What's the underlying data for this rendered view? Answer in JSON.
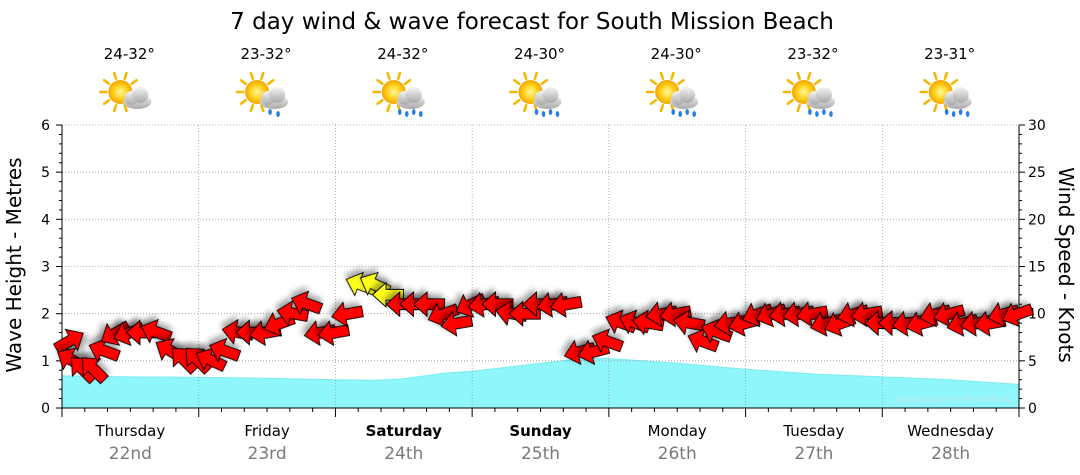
{
  "chart_data": {
    "type": "area",
    "title": "7 day wind & wave forecast for South Mission Beach",
    "ylabel_left": "Wave Height - Metres",
    "ylabel_right": "Wind Speed - Knots",
    "ylim_left": [
      0,
      6
    ],
    "ylim_right": [
      0,
      30
    ],
    "yticks_left": [
      "0",
      "1",
      "2",
      "3",
      "4",
      "5",
      "6"
    ],
    "yticks_right": [
      "0",
      "5",
      "10",
      "15",
      "20",
      "25",
      "30"
    ],
    "grid": true,
    "watermark": "www.seabreeze.com.au",
    "days": [
      {
        "name": "Thursday",
        "date": "22nd",
        "temp": "24-32°",
        "weather": "partly-cloudy",
        "weekend": false
      },
      {
        "name": "Friday",
        "date": "23rd",
        "temp": "23-32°",
        "weather": "showers",
        "weekend": false
      },
      {
        "name": "Saturday",
        "date": "24th",
        "temp": "24-32°",
        "weather": "rain",
        "weekend": true
      },
      {
        "name": "Sunday",
        "date": "25th",
        "temp": "24-30°",
        "weather": "rain",
        "weekend": true
      },
      {
        "name": "Monday",
        "date": "26th",
        "temp": "24-30°",
        "weather": "rain",
        "weekend": false
      },
      {
        "name": "Tuesday",
        "date": "27th",
        "temp": "23-32°",
        "weather": "rain",
        "weekend": false
      },
      {
        "name": "Wednesday",
        "date": "28th",
        "temp": "23-31°",
        "weather": "rain",
        "weekend": false
      }
    ],
    "wave_series": {
      "name": "Wave Height",
      "unit": "m",
      "x_days": [
        0,
        0.5,
        1,
        1.5,
        2,
        2.3,
        2.5,
        2.8,
        3,
        3.3,
        3.6,
        3.8,
        4,
        4.5,
        5,
        5.5,
        6,
        6.5,
        7
      ],
      "values": [
        0.68,
        0.66,
        0.65,
        0.63,
        0.6,
        0.59,
        0.62,
        0.74,
        0.78,
        0.88,
        0.98,
        1.05,
        1.05,
        0.95,
        0.82,
        0.72,
        0.66,
        0.6,
        0.5
      ]
    },
    "wind_series": {
      "name": "Wind Speed",
      "unit": "knots",
      "x_days": [
        0.0,
        0.08,
        0.16,
        0.24,
        0.32,
        0.4,
        0.5,
        0.6,
        0.7,
        0.8,
        0.9,
        1.0,
        1.1,
        1.2,
        1.3,
        1.4,
        1.5,
        1.6,
        1.7,
        1.8,
        1.9,
        2.0,
        2.1,
        2.2,
        2.3,
        2.4,
        2.5,
        2.6,
        2.7,
        2.8,
        2.9,
        3.0,
        3.1,
        3.2,
        3.3,
        3.4,
        3.5,
        3.6,
        3.7,
        3.8,
        3.9,
        4.0,
        4.1,
        4.2,
        4.3,
        4.4,
        4.5,
        4.6,
        4.7,
        4.8,
        4.9,
        5.0,
        5.1,
        5.2,
        5.3,
        5.4,
        5.5,
        5.6,
        5.7,
        5.8,
        5.9,
        6.0,
        6.1,
        6.2,
        6.3,
        6.4,
        6.5,
        6.6,
        6.7,
        6.8,
        6.9,
        7.0
      ],
      "speeds": [
        7,
        5,
        4,
        4,
        6,
        8,
        8,
        8,
        8,
        6,
        5,
        5,
        5,
        6,
        8,
        8,
        8,
        9,
        10,
        11,
        8,
        8,
        10,
        13,
        13,
        12,
        11,
        11,
        11,
        10,
        9,
        11,
        11,
        11,
        10,
        10,
        11,
        11,
        11,
        6,
        6,
        7,
        9,
        9,
        9,
        10,
        10,
        9,
        7,
        8,
        9,
        9,
        10,
        10,
        10,
        10,
        10,
        9,
        9,
        10,
        10,
        9,
        9,
        9,
        9,
        10,
        10,
        9,
        9,
        9,
        10,
        10
      ],
      "direction_deg": [
        330,
        210,
        225,
        225,
        200,
        150,
        160,
        180,
        200,
        210,
        225,
        225,
        205,
        200,
        190,
        180,
        170,
        160,
        190,
        200,
        170,
        170,
        170,
        200,
        205,
        180,
        180,
        180,
        180,
        160,
        170,
        155,
        170,
        180,
        190,
        180,
        180,
        170,
        170,
        165,
        165,
        200,
        200,
        200,
        190,
        170,
        170,
        190,
        200,
        200,
        170,
        165,
        160,
        160,
        170,
        170,
        170,
        165,
        160,
        165,
        170,
        180,
        180,
        170,
        165,
        165,
        165,
        165,
        170,
        170,
        165,
        160
      ],
      "arrow_colors": [
        "red",
        "red",
        "red",
        "red",
        "red",
        "red",
        "red",
        "red",
        "red",
        "red",
        "red",
        "red",
        "red",
        "red",
        "red",
        "red",
        "red",
        "red",
        "red",
        "red",
        "red",
        "red",
        "red",
        "yellow",
        "yellow",
        "yellow",
        "red",
        "red",
        "red",
        "red",
        "red",
        "red",
        "red",
        "red",
        "red",
        "red",
        "red",
        "red",
        "red",
        "red",
        "red",
        "red",
        "red",
        "red",
        "red",
        "red",
        "red",
        "red",
        "red",
        "red",
        "red",
        "red",
        "red",
        "red",
        "red",
        "red",
        "red",
        "red",
        "red",
        "red",
        "red",
        "red",
        "red",
        "red",
        "red",
        "red",
        "red",
        "red",
        "red",
        "red",
        "red",
        "red"
      ]
    },
    "colors": {
      "wave_fill": "#8ff6fb",
      "wave_line": "#7cecf2",
      "arrow_red": "#ff0000",
      "arrow_yellow": "#ffff1a",
      "grid": "#9a9a9a",
      "text": "#000000",
      "date_text": "#7a7a7a",
      "watermark": "#bfe9ee"
    }
  }
}
